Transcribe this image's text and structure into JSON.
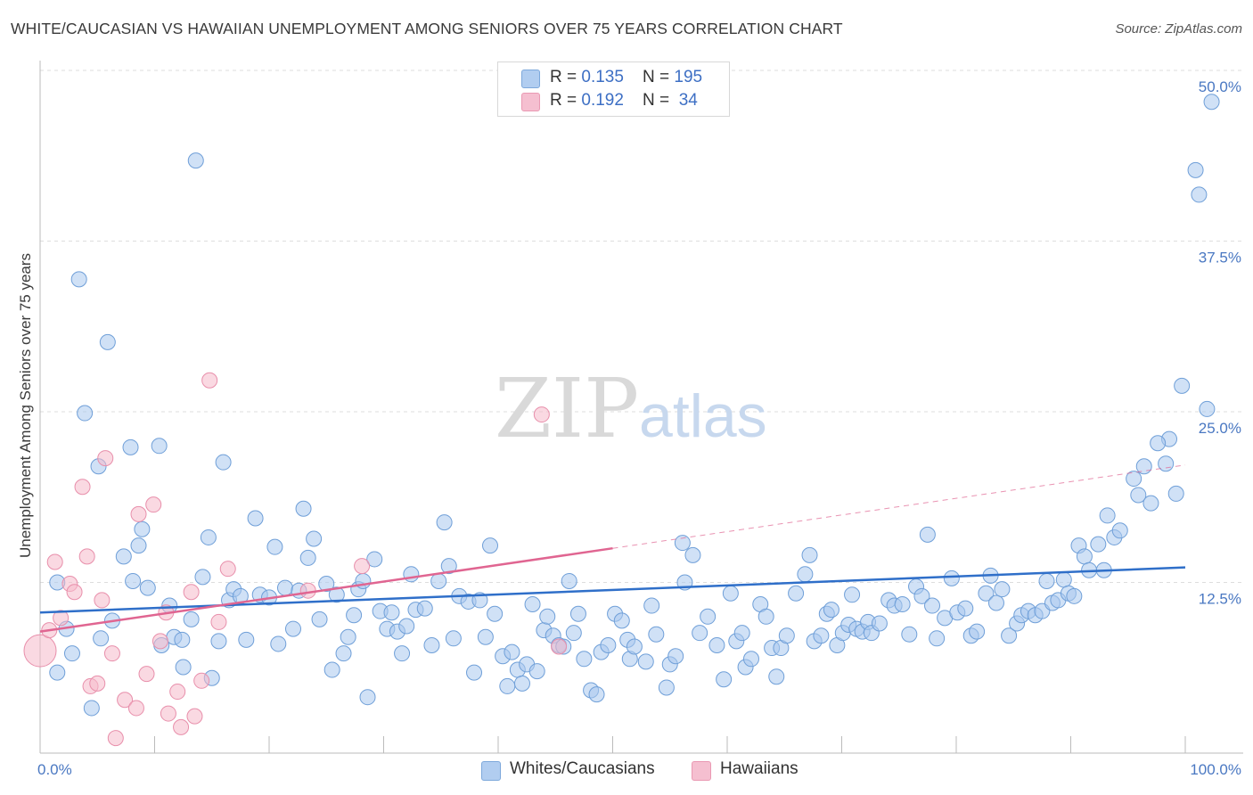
{
  "title": "WHITE/CAUCASIAN VS HAWAIIAN UNEMPLOYMENT AMONG SENIORS OVER 75 YEARS CORRELATION CHART",
  "source": "Source: ZipAtlas.com",
  "watermark": {
    "zip": "ZIP",
    "atlas": "atlas"
  },
  "legend": {
    "rows": [
      {
        "r_label": "R = ",
        "r_value": "0.135",
        "n_label": "N = ",
        "n_value": "195",
        "color": "#a9c8ef"
      },
      {
        "r_label": "R = ",
        "r_value": "0.192",
        "n_label": "N = ",
        "n_value": " 34",
        "color": "#f5b9cb"
      }
    ]
  },
  "bottom_legend": {
    "whites": "Whites/Caucasians",
    "hawaiians": "Hawaiians"
  },
  "colors": {
    "blue_fill": "#a9c8ef",
    "blue_stroke": "#6f9fd8",
    "blue_line": "#2f6fc9",
    "pink_fill": "#f5b9cb",
    "pink_stroke": "#e88fab",
    "pink_line": "#e06591",
    "grid": "#dddddd",
    "tick_text": "#4a78c2"
  },
  "chart_data": {
    "type": "scatter",
    "title": "WHITE/CAUCASIAN VS HAWAIIAN UNEMPLOYMENT AMONG SENIORS OVER 75 YEARS CORRELATION CHART",
    "xlabel": "",
    "ylabel": "Unemployment Among Seniors over 75 years",
    "x_tick_labels": [
      "0.0%",
      "100.0%"
    ],
    "y_tick_labels": [
      "12.5%",
      "25.0%",
      "37.5%",
      "50.0%"
    ],
    "xlim": [
      0,
      100
    ],
    "ylim": [
      0,
      51.5
    ],
    "y_ticks": [
      12.5,
      25.0,
      37.5,
      50.0
    ],
    "series": [
      {
        "name": "Whites/Caucasians",
        "r": 0.135,
        "n": 195,
        "trend": {
          "x0": 0,
          "y0": 10.3,
          "x1": 100,
          "y1": 13.6,
          "dashed_from": null
        },
        "points": [
          [
            1.5,
            5.9
          ],
          [
            1.5,
            12.5
          ],
          [
            2.3,
            9.1
          ],
          [
            2.8,
            7.3
          ],
          [
            3.4,
            34.7
          ],
          [
            3.9,
            24.9
          ],
          [
            4.5,
            3.3
          ],
          [
            5.1,
            21.0
          ],
          [
            5.3,
            8.4
          ],
          [
            5.9,
            30.1
          ],
          [
            6.3,
            9.7
          ],
          [
            7.3,
            14.4
          ],
          [
            7.9,
            22.4
          ],
          [
            8.1,
            12.6
          ],
          [
            8.6,
            15.2
          ],
          [
            8.9,
            16.4
          ],
          [
            9.4,
            12.1
          ],
          [
            10.4,
            22.5
          ],
          [
            10.6,
            7.9
          ],
          [
            11.3,
            10.8
          ],
          [
            11.7,
            8.5
          ],
          [
            12.4,
            8.3
          ],
          [
            12.5,
            6.3
          ],
          [
            13.2,
            9.8
          ],
          [
            13.6,
            43.4
          ],
          [
            14.2,
            12.9
          ],
          [
            14.7,
            15.8
          ],
          [
            15.0,
            5.5
          ],
          [
            15.6,
            8.2
          ],
          [
            16.0,
            21.3
          ],
          [
            16.5,
            11.2
          ],
          [
            16.9,
            12.0
          ],
          [
            17.5,
            11.5
          ],
          [
            18.0,
            8.3
          ],
          [
            18.8,
            17.2
          ],
          [
            19.2,
            11.6
          ],
          [
            20.0,
            11.4
          ],
          [
            20.5,
            15.1
          ],
          [
            20.8,
            8.0
          ],
          [
            21.4,
            12.1
          ],
          [
            22.1,
            9.1
          ],
          [
            22.6,
            11.9
          ],
          [
            23.0,
            17.9
          ],
          [
            23.4,
            14.3
          ],
          [
            23.9,
            15.7
          ],
          [
            24.4,
            9.8
          ],
          [
            25.0,
            12.4
          ],
          [
            25.5,
            6.1
          ],
          [
            25.9,
            11.6
          ],
          [
            26.5,
            7.3
          ],
          [
            26.9,
            8.5
          ],
          [
            27.4,
            10.1
          ],
          [
            27.8,
            12.0
          ],
          [
            28.2,
            12.6
          ],
          [
            28.6,
            4.1
          ],
          [
            29.2,
            14.2
          ],
          [
            29.7,
            10.4
          ],
          [
            30.3,
            9.1
          ],
          [
            30.7,
            10.3
          ],
          [
            31.2,
            8.9
          ],
          [
            31.6,
            7.3
          ],
          [
            32.0,
            9.3
          ],
          [
            32.4,
            13.1
          ],
          [
            32.8,
            10.5
          ],
          [
            33.6,
            10.6
          ],
          [
            34.2,
            7.9
          ],
          [
            34.8,
            12.6
          ],
          [
            35.3,
            16.9
          ],
          [
            35.7,
            13.7
          ],
          [
            36.1,
            8.4
          ],
          [
            36.6,
            11.5
          ],
          [
            37.4,
            11.1
          ],
          [
            37.9,
            5.9
          ],
          [
            38.4,
            11.2
          ],
          [
            38.9,
            8.5
          ],
          [
            39.3,
            15.2
          ],
          [
            39.7,
            10.2
          ],
          [
            40.4,
            7.1
          ],
          [
            40.8,
            4.9
          ],
          [
            41.2,
            7.4
          ],
          [
            41.7,
            6.1
          ],
          [
            42.1,
            5.1
          ],
          [
            42.5,
            6.5
          ],
          [
            43.0,
            10.9
          ],
          [
            43.4,
            6.0
          ],
          [
            44.0,
            9.0
          ],
          [
            44.3,
            10.0
          ],
          [
            44.8,
            8.6
          ],
          [
            45.3,
            7.9
          ],
          [
            45.7,
            7.8
          ],
          [
            46.2,
            12.6
          ],
          [
            46.6,
            8.8
          ],
          [
            47.0,
            10.2
          ],
          [
            47.5,
            6.9
          ],
          [
            48.1,
            4.6
          ],
          [
            48.6,
            4.3
          ],
          [
            49.0,
            7.4
          ],
          [
            49.6,
            7.9
          ],
          [
            50.2,
            10.2
          ],
          [
            50.8,
            9.7
          ],
          [
            51.3,
            8.3
          ],
          [
            51.5,
            6.9
          ],
          [
            51.9,
            7.8
          ],
          [
            52.9,
            6.7
          ],
          [
            53.4,
            10.8
          ],
          [
            53.8,
            8.7
          ],
          [
            54.7,
            4.8
          ],
          [
            55.0,
            6.5
          ],
          [
            55.5,
            7.1
          ],
          [
            56.1,
            15.4
          ],
          [
            56.3,
            12.5
          ],
          [
            57.0,
            14.5
          ],
          [
            57.6,
            8.8
          ],
          [
            58.3,
            10.0
          ],
          [
            59.1,
            7.9
          ],
          [
            59.7,
            5.4
          ],
          [
            60.3,
            11.7
          ],
          [
            60.8,
            8.2
          ],
          [
            61.3,
            8.8
          ],
          [
            61.6,
            6.3
          ],
          [
            62.1,
            6.9
          ],
          [
            62.9,
            10.9
          ],
          [
            63.4,
            10.0
          ],
          [
            63.9,
            7.7
          ],
          [
            64.3,
            5.6
          ],
          [
            64.7,
            7.7
          ],
          [
            65.2,
            8.6
          ],
          [
            66.0,
            11.7
          ],
          [
            66.8,
            13.1
          ],
          [
            67.2,
            14.5
          ],
          [
            67.6,
            8.2
          ],
          [
            68.2,
            8.6
          ],
          [
            68.7,
            10.2
          ],
          [
            69.1,
            10.5
          ],
          [
            69.6,
            7.9
          ],
          [
            70.1,
            8.8
          ],
          [
            70.6,
            9.4
          ],
          [
            70.9,
            11.6
          ],
          [
            71.3,
            9.1
          ],
          [
            71.8,
            8.9
          ],
          [
            72.3,
            9.6
          ],
          [
            72.6,
            8.8
          ],
          [
            73.3,
            9.5
          ],
          [
            74.1,
            11.2
          ],
          [
            74.6,
            10.8
          ],
          [
            75.3,
            10.9
          ],
          [
            75.9,
            8.7
          ],
          [
            76.5,
            12.2
          ],
          [
            77.0,
            11.5
          ],
          [
            77.5,
            16.0
          ],
          [
            77.9,
            10.8
          ],
          [
            78.3,
            8.4
          ],
          [
            79.0,
            9.9
          ],
          [
            79.6,
            12.8
          ],
          [
            80.1,
            10.3
          ],
          [
            80.8,
            10.6
          ],
          [
            81.3,
            8.6
          ],
          [
            81.8,
            8.9
          ],
          [
            82.6,
            11.7
          ],
          [
            83.0,
            13.0
          ],
          [
            83.5,
            11.0
          ],
          [
            84.0,
            12.0
          ],
          [
            84.6,
            8.6
          ],
          [
            85.3,
            9.5
          ],
          [
            85.7,
            10.1
          ],
          [
            86.3,
            10.4
          ],
          [
            86.9,
            10.1
          ],
          [
            87.5,
            10.4
          ],
          [
            87.9,
            12.6
          ],
          [
            88.4,
            11.0
          ],
          [
            88.9,
            11.2
          ],
          [
            89.4,
            12.7
          ],
          [
            89.8,
            11.7
          ],
          [
            90.3,
            11.5
          ],
          [
            90.7,
            15.2
          ],
          [
            91.2,
            14.4
          ],
          [
            91.6,
            13.4
          ],
          [
            92.4,
            15.3
          ],
          [
            92.9,
            13.4
          ],
          [
            93.2,
            17.4
          ],
          [
            93.8,
            15.8
          ],
          [
            94.3,
            16.3
          ],
          [
            95.5,
            20.1
          ],
          [
            95.9,
            18.9
          ],
          [
            96.4,
            21.0
          ],
          [
            97.0,
            18.3
          ],
          [
            98.3,
            21.2
          ],
          [
            98.6,
            23.0
          ],
          [
            99.2,
            19.0
          ],
          [
            99.7,
            26.9
          ],
          [
            100.9,
            42.7
          ],
          [
            101.2,
            40.9
          ],
          [
            102.3,
            47.7
          ],
          [
            101.9,
            25.2
          ],
          [
            97.6,
            22.7
          ]
        ]
      },
      {
        "name": "Hawaiians",
        "r": 0.192,
        "n": 34,
        "trend": {
          "x0": 0,
          "y0": 8.9,
          "x1": 100,
          "y1": 21.1,
          "dashed_from": 50
        },
        "points": [
          [
            0,
            7.5
          ],
          [
            0.8,
            9.0
          ],
          [
            1.3,
            14.0
          ],
          [
            1.8,
            9.9
          ],
          [
            2.6,
            12.4
          ],
          [
            3.0,
            11.8
          ],
          [
            3.7,
            19.5
          ],
          [
            4.1,
            14.4
          ],
          [
            4.4,
            4.9
          ],
          [
            5.0,
            5.1
          ],
          [
            5.4,
            11.2
          ],
          [
            5.7,
            21.6
          ],
          [
            6.3,
            7.3
          ],
          [
            6.6,
            1.1
          ],
          [
            7.4,
            3.9
          ],
          [
            8.4,
            3.3
          ],
          [
            8.6,
            17.5
          ],
          [
            9.3,
            5.8
          ],
          [
            9.9,
            18.2
          ],
          [
            10.5,
            8.2
          ],
          [
            11.0,
            10.3
          ],
          [
            11.2,
            2.9
          ],
          [
            12.0,
            4.5
          ],
          [
            12.3,
            1.9
          ],
          [
            13.2,
            11.8
          ],
          [
            13.5,
            2.7
          ],
          [
            14.1,
            5.3
          ],
          [
            14.8,
            27.3
          ],
          [
            15.6,
            9.6
          ],
          [
            16.4,
            13.5
          ],
          [
            23.4,
            11.9
          ],
          [
            28.1,
            13.7
          ],
          [
            43.8,
            24.8
          ],
          [
            45.3,
            7.8
          ]
        ]
      }
    ]
  }
}
